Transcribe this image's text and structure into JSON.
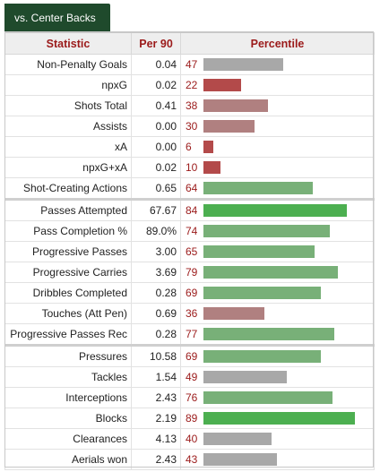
{
  "tab": {
    "label": "vs. Center Backs"
  },
  "headers": {
    "statistic": "Statistic",
    "per90": "Per 90",
    "percentile": "Percentile"
  },
  "groups": [
    [
      {
        "stat": "Non-Penalty Goals",
        "per90": "0.04",
        "pct": 47
      },
      {
        "stat": "npxG",
        "per90": "0.02",
        "pct": 22
      },
      {
        "stat": "Shots Total",
        "per90": "0.41",
        "pct": 38
      },
      {
        "stat": "Assists",
        "per90": "0.00",
        "pct": 30
      },
      {
        "stat": "xA",
        "per90": "0.00",
        "pct": 6
      },
      {
        "stat": "npxG+xA",
        "per90": "0.02",
        "pct": 10
      },
      {
        "stat": "Shot-Creating Actions",
        "per90": "0.65",
        "pct": 64
      }
    ],
    [
      {
        "stat": "Passes Attempted",
        "per90": "67.67",
        "pct": 84
      },
      {
        "stat": "Pass Completion %",
        "per90": "89.0%",
        "pct": 74
      },
      {
        "stat": "Progressive Passes",
        "per90": "3.00",
        "pct": 65
      },
      {
        "stat": "Progressive Carries",
        "per90": "3.69",
        "pct": 79
      },
      {
        "stat": "Dribbles Completed",
        "per90": "0.28",
        "pct": 69
      },
      {
        "stat": "Touches (Att Pen)",
        "per90": "0.69",
        "pct": 36
      },
      {
        "stat": "Progressive Passes Rec",
        "per90": "0.28",
        "pct": 77
      }
    ],
    [
      {
        "stat": "Pressures",
        "per90": "10.58",
        "pct": 69
      },
      {
        "stat": "Tackles",
        "per90": "1.54",
        "pct": 49
      },
      {
        "stat": "Interceptions",
        "per90": "2.43",
        "pct": 76
      },
      {
        "stat": "Blocks",
        "per90": "2.19",
        "pct": 89
      },
      {
        "stat": "Clearances",
        "per90": "4.13",
        "pct": 40
      },
      {
        "stat": "Aerials won",
        "per90": "2.43",
        "pct": 43
      }
    ]
  ],
  "colors": {
    "tab_bg": "#1f4a2c",
    "header_text": "#9b1a1a",
    "bar_red": "#b34a4a",
    "bar_mid_red": "#b08080",
    "bar_grey": "#a8a8a8",
    "bar_light_green": "#78b078",
    "bar_green": "#4caf50"
  }
}
